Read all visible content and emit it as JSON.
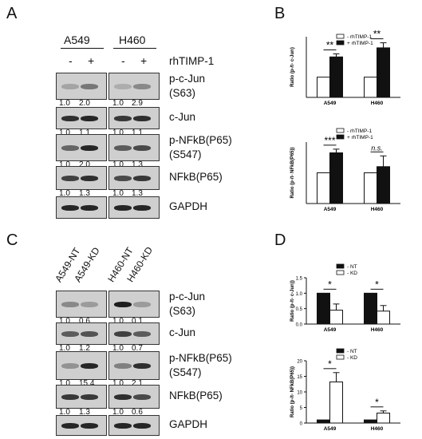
{
  "panels": {
    "A": {
      "label": "A",
      "cell_lines": [
        "A549",
        "H460"
      ],
      "treatment_label": "rhTIMP-1",
      "signs": [
        "-",
        "+",
        "-",
        "+"
      ],
      "blots": [
        {
          "label": "p-c-Jun\n(S63)",
          "values": [
            "1.0",
            "2.0",
            "1.0",
            "2.9"
          ],
          "intensity": [
            0.2,
            0.45,
            0.15,
            0.35
          ]
        },
        {
          "label": "c-Jun",
          "values": [
            "1.0",
            "1.1",
            "1.0",
            "1.1"
          ],
          "intensity": [
            0.85,
            0.9,
            0.8,
            0.85
          ]
        },
        {
          "label": "p-NFkB(P65)\n(S547)",
          "values": [
            "1.0",
            "2.0",
            "1.0",
            "1.3"
          ],
          "intensity": [
            0.55,
            0.9,
            0.6,
            0.7
          ]
        },
        {
          "label": "NFkB(P65)",
          "values": [
            "1.0",
            "1.3",
            "1.0",
            "1.3"
          ],
          "intensity": [
            0.75,
            0.85,
            0.7,
            0.8
          ]
        },
        {
          "label": "GAPDH",
          "values": [],
          "intensity": [
            0.9,
            0.9,
            0.9,
            0.9
          ]
        }
      ]
    },
    "C": {
      "label": "C",
      "lanes": [
        "A549-NT",
        "A549-KD",
        "H460-NT",
        "H460-KD"
      ],
      "blots": [
        {
          "label": "p-c-Jun\n(S63)",
          "values": [
            "1.0",
            "0.6",
            "1.0",
            "0.1"
          ],
          "intensity": [
            0.35,
            0.25,
            0.95,
            0.25
          ]
        },
        {
          "label": "c-Jun",
          "values": [
            "1.0",
            "1.2",
            "1.0",
            "0.7"
          ],
          "intensity": [
            0.6,
            0.65,
            0.75,
            0.6
          ]
        },
        {
          "label": "p-NFkB(P65)\n(S547)",
          "values": [
            "1.0",
            "15.4",
            "1.0",
            "2.1"
          ],
          "intensity": [
            0.3,
            0.9,
            0.4,
            0.85
          ]
        },
        {
          "label": "NFkB(P65)",
          "values": [
            "1.0",
            "1.3",
            "1.0",
            "0.6"
          ],
          "intensity": [
            0.8,
            0.8,
            0.85,
            0.7
          ]
        },
        {
          "label": "GAPDH",
          "values": [],
          "intensity": [
            0.9,
            0.9,
            0.9,
            0.9
          ]
        }
      ]
    },
    "B": {
      "label": "B"
    },
    "D": {
      "label": "D"
    }
  },
  "chart_data": [
    {
      "type": "bar",
      "panel": "B-top",
      "categories": [
        "A549",
        "H460"
      ],
      "series": [
        {
          "name": "- rhTIMP-1",
          "values": [
            1.0,
            1.0
          ],
          "err": [
            0,
            0
          ],
          "fill": "#ffffff"
        },
        {
          "name": "+ rhTIMP-1",
          "values": [
            2.0,
            2.45
          ],
          "err": [
            0.15,
            0.25
          ],
          "fill": "#111111"
        }
      ],
      "ylabel": "Ratio (p-/t- c-Jun)",
      "ylim": [
        0,
        3
      ],
      "significance": [
        "**",
        "**"
      ],
      "legend": "top-left"
    },
    {
      "type": "bar",
      "panel": "B-bottom",
      "categories": [
        "A549",
        "H460"
      ],
      "series": [
        {
          "name": "- rhTIMP-1",
          "values": [
            1.0,
            1.0
          ],
          "err": [
            0,
            0
          ],
          "fill": "#ffffff"
        },
        {
          "name": "+ rhTIMP-1",
          "values": [
            1.65,
            1.2
          ],
          "err": [
            0.12,
            0.35
          ],
          "fill": "#111111"
        }
      ],
      "ylabel": "Ratio (p-/t- NFkB(P65))",
      "ylim": [
        0,
        2
      ],
      "significance": [
        "***",
        "n.s."
      ],
      "legend": "top-left"
    },
    {
      "type": "bar",
      "panel": "D-top",
      "categories": [
        "A549",
        "H460"
      ],
      "series": [
        {
          "name": "- NT",
          "values": [
            1.0,
            1.0
          ],
          "err": [
            0,
            0
          ],
          "fill": "#111111"
        },
        {
          "name": "- KD",
          "values": [
            0.45,
            0.42
          ],
          "err": [
            0.2,
            0.18
          ],
          "fill": "#ffffff"
        }
      ],
      "ylabel": "Ratio (p-/t- c-Jun))",
      "ylim": [
        0.0,
        1.5
      ],
      "yticks": [
        "0.0",
        "0.5",
        "1.0",
        "1.5"
      ],
      "significance": [
        "*",
        "*"
      ],
      "legend": "top-left"
    },
    {
      "type": "bar",
      "panel": "D-bottom",
      "categories": [
        "A549",
        "H460"
      ],
      "series": [
        {
          "name": "- NT",
          "values": [
            1.0,
            1.0
          ],
          "err": [
            0,
            0
          ],
          "fill": "#111111"
        },
        {
          "name": "- KD",
          "values": [
            13.2,
            3.2
          ],
          "err": [
            3.0,
            0.7
          ],
          "fill": "#ffffff"
        }
      ],
      "ylabel": "Ratio (p-/t- NFkB(P65))",
      "ylim": [
        0,
        20
      ],
      "yticks": [
        "0",
        "5",
        "10",
        "15",
        "20"
      ],
      "significance": [
        "*",
        "*"
      ],
      "legend": "top-left"
    }
  ]
}
